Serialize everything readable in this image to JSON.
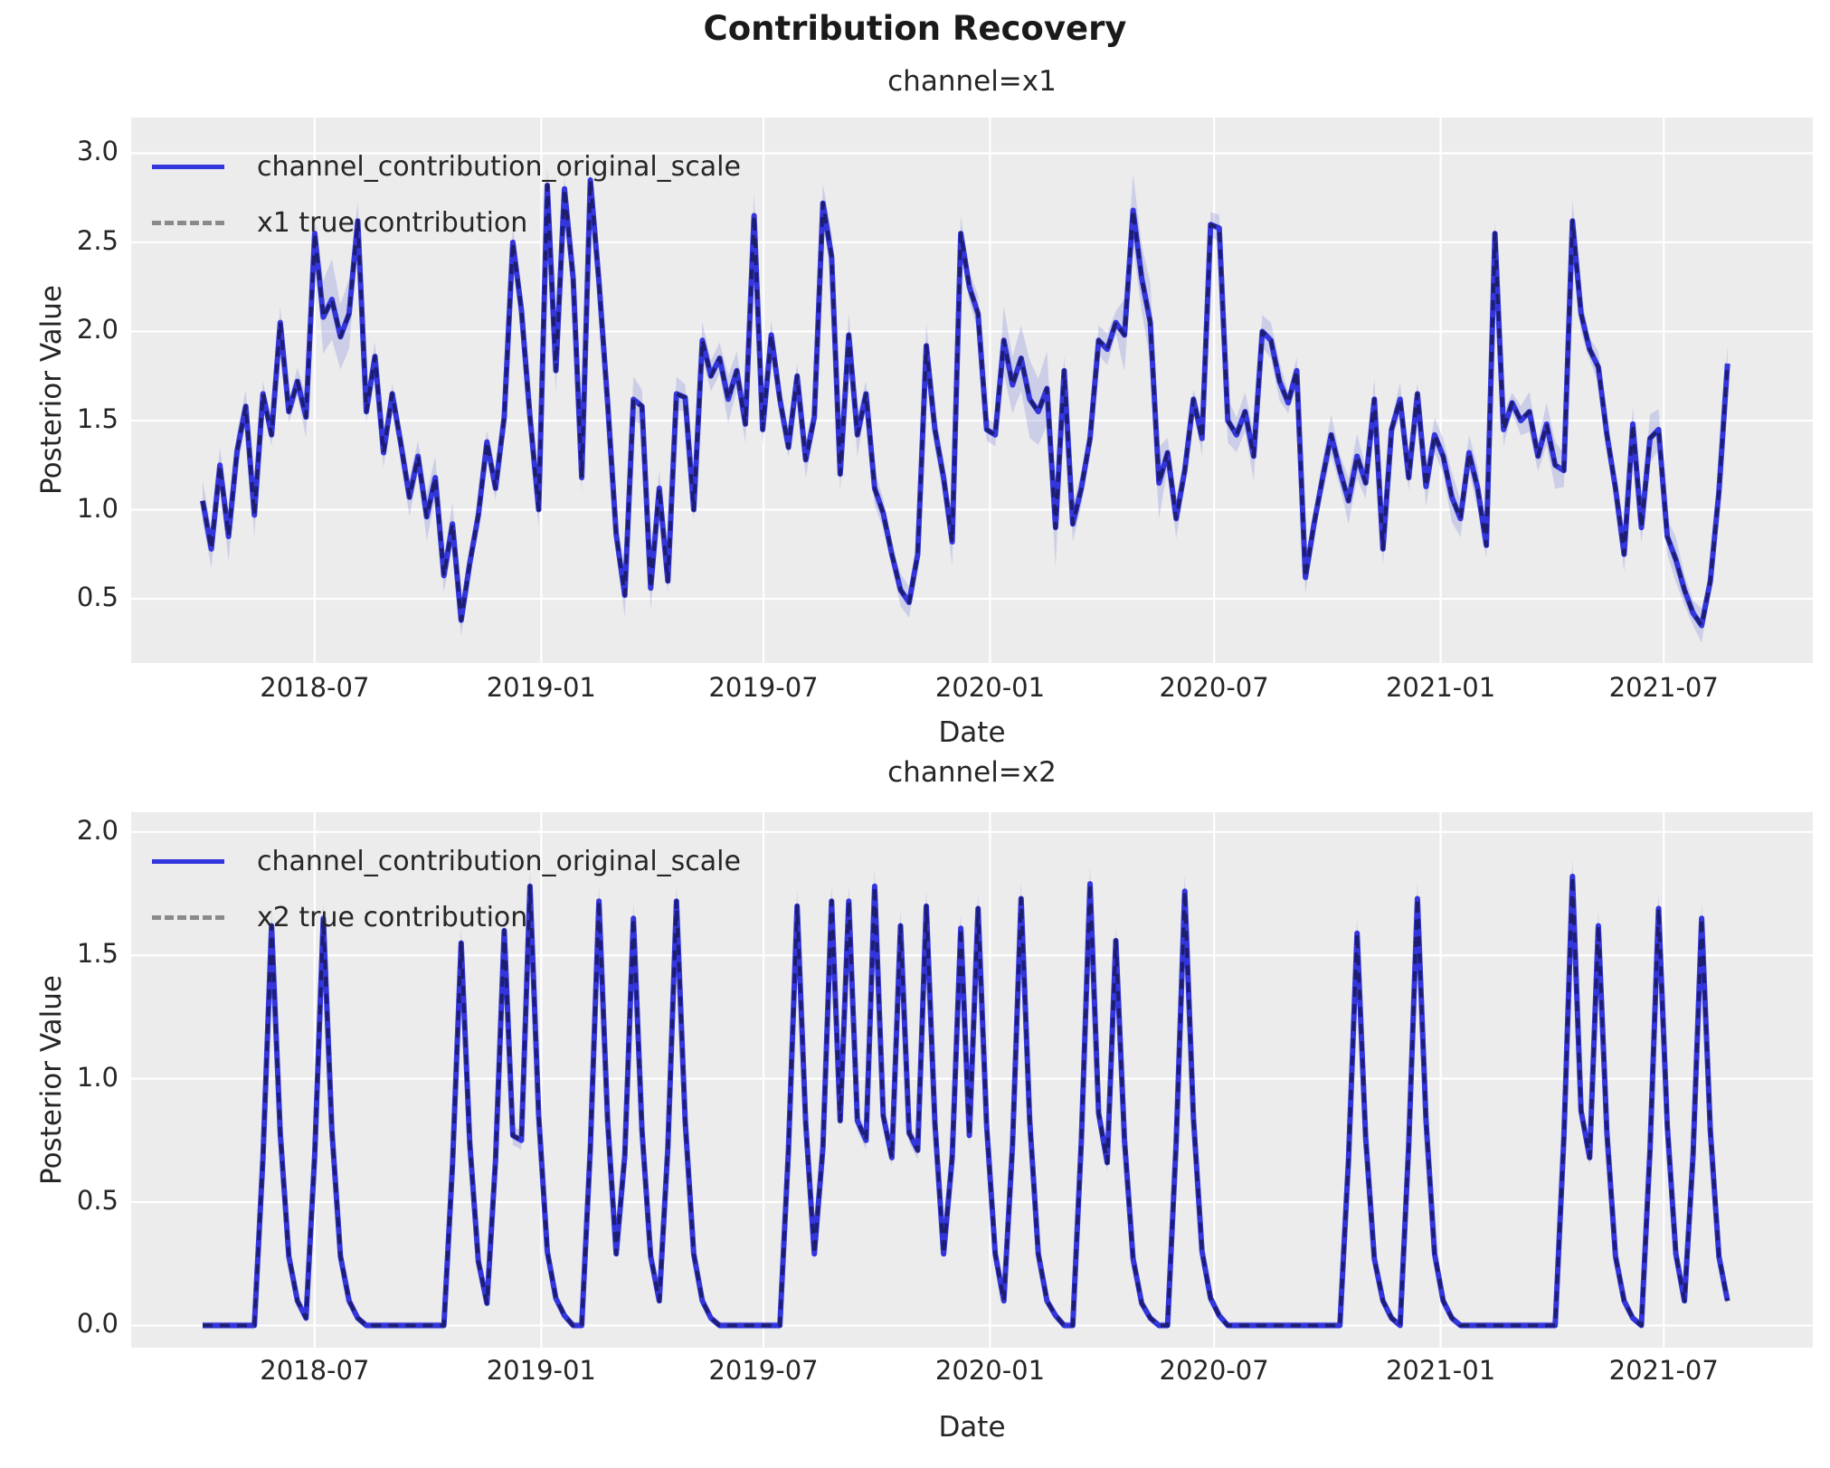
{
  "figure": {
    "suptitle": "Contribution Recovery"
  },
  "colors": {
    "posterior_line": "#3335dd",
    "true_line_on_plot": "#1e1e70",
    "true_line_legend": "#8a8a8a",
    "hdi_band": "#6a74d8",
    "plot_background": "#ececec",
    "grid": "#ffffff",
    "text": "#262626"
  },
  "chart_data": [
    {
      "type": "line",
      "title": "channel=x1",
      "xlabel": "Date",
      "ylabel": "Posterior Value",
      "x_start_date": "2018-04-01",
      "x_freq_days": 7,
      "n_points": 178,
      "x_tick_labels": [
        "2018-07",
        "2019-01",
        "2019-07",
        "2020-01",
        "2020-07",
        "2021-01",
        "2021-07"
      ],
      "x_tick_week_index": [
        13.0,
        39.3,
        65.1,
        91.4,
        117.4,
        143.7,
        169.6
      ],
      "xlim_week_index": [
        -8.3,
        186.9
      ],
      "y_tick_labels": [
        "0.5",
        "1.0",
        "1.5",
        "2.0",
        "2.5",
        "3.0"
      ],
      "ylim": [
        0.14,
        3.2
      ],
      "grid": true,
      "legend_position": "upper left",
      "band": {
        "name": "posterior HDI band",
        "color": "#6a74d8",
        "opacity": 0.25,
        "typical_halfwidth": 0.09
      },
      "series": [
        {
          "name": "channel_contribution_original_scale",
          "style": "solid",
          "color": "#3335dd",
          "values": [
            1.05,
            0.78,
            1.25,
            0.85,
            1.33,
            1.58,
            0.97,
            1.65,
            1.42,
            2.05,
            1.55,
            1.72,
            1.52,
            2.55,
            2.08,
            2.18,
            1.97,
            2.1,
            2.62,
            1.55,
            1.86,
            1.32,
            1.65,
            1.37,
            1.07,
            1.3,
            0.96,
            1.18,
            0.63,
            0.92,
            0.38,
            0.7,
            0.97,
            1.38,
            1.12,
            1.52,
            2.5,
            2.12,
            1.52,
            1.0,
            2.82,
            1.78,
            2.8,
            2.3,
            1.18,
            2.85,
            2.28,
            1.6,
            0.86,
            0.52,
            1.62,
            1.58,
            0.56,
            1.12,
            0.6,
            1.65,
            1.63,
            1.0,
            1.95,
            1.75,
            1.85,
            1.62,
            1.78,
            1.48,
            2.65,
            1.45,
            1.98,
            1.62,
            1.35,
            1.75,
            1.28,
            1.52,
            2.72,
            2.42,
            1.2,
            1.98,
            1.42,
            1.65,
            1.12,
            0.98,
            0.75,
            0.55,
            0.48,
            0.75,
            1.92,
            1.45,
            1.18,
            0.82,
            2.55,
            2.25,
            2.1,
            1.45,
            1.42,
            1.95,
            1.7,
            1.85,
            1.62,
            1.55,
            1.68,
            0.9,
            1.78,
            0.92,
            1.12,
            1.4,
            1.95,
            1.9,
            2.05,
            1.98,
            2.68,
            2.3,
            2.05,
            1.15,
            1.32,
            0.95,
            1.22,
            1.62,
            1.4,
            2.6,
            2.58,
            1.5,
            1.42,
            1.55,
            1.3,
            2.0,
            1.95,
            1.72,
            1.6,
            1.78,
            0.62,
            0.92,
            1.18,
            1.42,
            1.22,
            1.05,
            1.3,
            1.15,
            1.62,
            0.78,
            1.45,
            1.62,
            1.18,
            1.65,
            1.13,
            1.42,
            1.3,
            1.07,
            0.95,
            1.32,
            1.12,
            0.8,
            2.55,
            1.45,
            1.6,
            1.5,
            1.55,
            1.3,
            1.48,
            1.25,
            1.22,
            2.62,
            2.1,
            1.9,
            1.8,
            1.42,
            1.12,
            0.75,
            1.48,
            0.9,
            1.4,
            1.45,
            0.85,
            0.72,
            0.55,
            0.42,
            0.35,
            0.6,
            1.1,
            1.82
          ]
        },
        {
          "name": "x1 true contribution",
          "style": "dashed",
          "color": "#8a8a8a",
          "plot_color": "#1e1e70",
          "values_same_as_series": 0
        }
      ]
    },
    {
      "type": "line",
      "title": "channel=x2",
      "xlabel": "Date",
      "ylabel": "Posterior Value",
      "x_start_date": "2018-04-01",
      "x_freq_days": 7,
      "n_points": 178,
      "x_tick_labels": [
        "2018-07",
        "2019-01",
        "2019-07",
        "2020-01",
        "2020-07",
        "2021-01",
        "2021-07"
      ],
      "x_tick_week_index": [
        13.0,
        39.3,
        65.1,
        91.4,
        117.4,
        143.7,
        169.6
      ],
      "xlim_week_index": [
        -8.3,
        186.9
      ],
      "y_tick_labels": [
        "0.0",
        "0.5",
        "1.0",
        "1.5",
        "2.0"
      ],
      "ylim": [
        -0.09,
        2.08
      ],
      "grid": true,
      "legend_position": "upper left",
      "band": {
        "name": "posterior HDI band",
        "color": "#6a74d8",
        "opacity": 0.25,
        "typical_halfwidth": 0.03
      },
      "series": [
        {
          "name": "channel_contribution_original_scale",
          "style": "solid",
          "color": "#3335dd",
          "values": [
            0,
            0,
            0,
            0,
            0,
            0,
            0,
            0.68,
            1.62,
            0.78,
            0.28,
            0.1,
            0.03,
            0.69,
            1.65,
            0.79,
            0.28,
            0.1,
            0.03,
            0,
            0,
            0,
            0,
            0,
            0,
            0,
            0,
            0,
            0,
            0.65,
            1.55,
            0.74,
            0.26,
            0.09,
            0.67,
            1.6,
            0.77,
            0.75,
            1.78,
            0.85,
            0.3,
            0.11,
            0.04,
            0,
            0,
            0.72,
            1.72,
            0.83,
            0.29,
            0.69,
            1.65,
            0.79,
            0.28,
            0.1,
            0.72,
            1.72,
            0.83,
            0.29,
            0.1,
            0.03,
            0,
            0,
            0,
            0,
            0,
            0,
            0,
            0,
            0.71,
            1.7,
            0.82,
            0.29,
            0.72,
            1.72,
            0.83,
            1.72,
            0.83,
            0.75,
            1.78,
            0.85,
            0.68,
            1.62,
            0.78,
            0.71,
            1.7,
            0.82,
            0.29,
            0.68,
            1.61,
            0.77,
            1.69,
            0.81,
            0.29,
            0.1,
            0.73,
            1.73,
            0.83,
            0.29,
            0.1,
            0.04,
            0,
            0,
            0.75,
            1.79,
            0.86,
            0.66,
            1.56,
            0.75,
            0.27,
            0.09,
            0.03,
            0,
            0,
            0.74,
            1.76,
            0.84,
            0.3,
            0.11,
            0.04,
            0,
            0,
            0,
            0,
            0,
            0,
            0,
            0,
            0,
            0,
            0,
            0,
            0,
            0,
            0.67,
            1.59,
            0.76,
            0.27,
            0.1,
            0.03,
            0,
            0.73,
            1.73,
            0.83,
            0.29,
            0.1,
            0.03,
            0,
            0,
            0,
            0,
            0,
            0,
            0,
            0,
            0,
            0,
            0,
            0,
            0.76,
            1.82,
            0.87,
            0.68,
            1.62,
            0.78,
            0.28,
            0.1,
            0.03,
            0,
            0.71,
            1.69,
            0.81,
            0.29,
            0.1,
            0.69,
            1.65,
            0.79,
            0.28,
            0.1
          ]
        },
        {
          "name": "x2 true contribution",
          "style": "dashed",
          "color": "#8a8a8a",
          "plot_color": "#1e1e70",
          "values_same_as_series": 0
        }
      ]
    }
  ]
}
